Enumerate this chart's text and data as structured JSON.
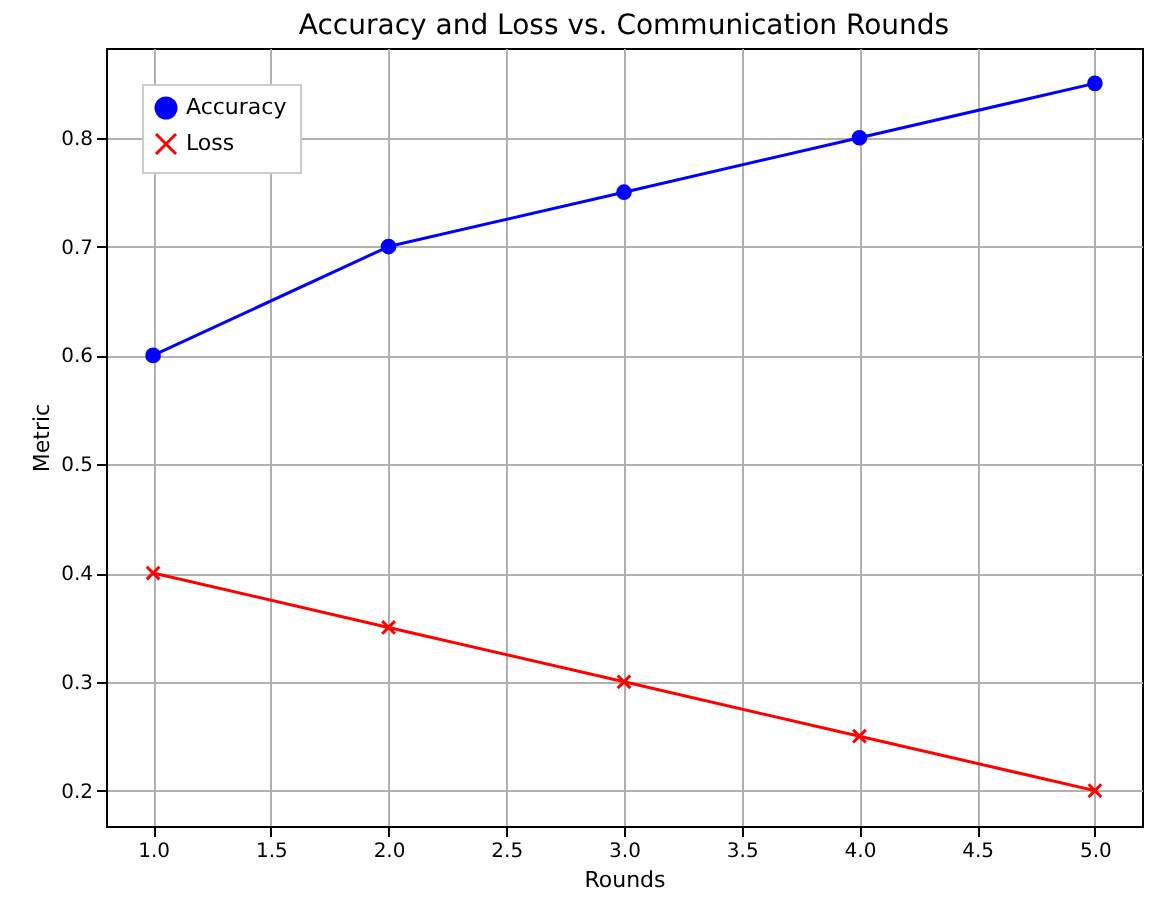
{
  "chart_data": {
    "type": "line",
    "title": "Accuracy and Loss vs. Communication Rounds",
    "xlabel": "Rounds",
    "ylabel": "Metric",
    "x": [
      1,
      2,
      3,
      4,
      5
    ],
    "series": [
      {
        "name": "Accuracy",
        "color": "#0000ff",
        "values": [
          0.6,
          0.7,
          0.75,
          0.8,
          0.85
        ],
        "marker": "circle"
      },
      {
        "name": "Loss",
        "color": "#ff0000",
        "values": [
          0.4,
          0.35,
          0.3,
          0.25,
          0.2
        ],
        "marker": "cross"
      }
    ],
    "xlim": [
      0.8,
      5.2
    ],
    "ylim": [
      0.1675,
      0.8825
    ],
    "xticks": [
      {
        "value": 1,
        "label": "1.0"
      },
      {
        "value": 1.5,
        "label": "1.5"
      },
      {
        "value": 2,
        "label": "2.0"
      },
      {
        "value": 2.5,
        "label": "2.5"
      },
      {
        "value": 3,
        "label": "3.0"
      },
      {
        "value": 3.5,
        "label": "3.5"
      },
      {
        "value": 4,
        "label": "4.0"
      },
      {
        "value": 4.5,
        "label": "4.5"
      },
      {
        "value": 5,
        "label": "5.0"
      }
    ],
    "yticks": [
      0.2,
      0.3,
      0.4,
      0.5,
      0.6,
      0.7,
      0.8
    ],
    "grid": true,
    "legend": "top left",
    "line_style": "solid"
  }
}
